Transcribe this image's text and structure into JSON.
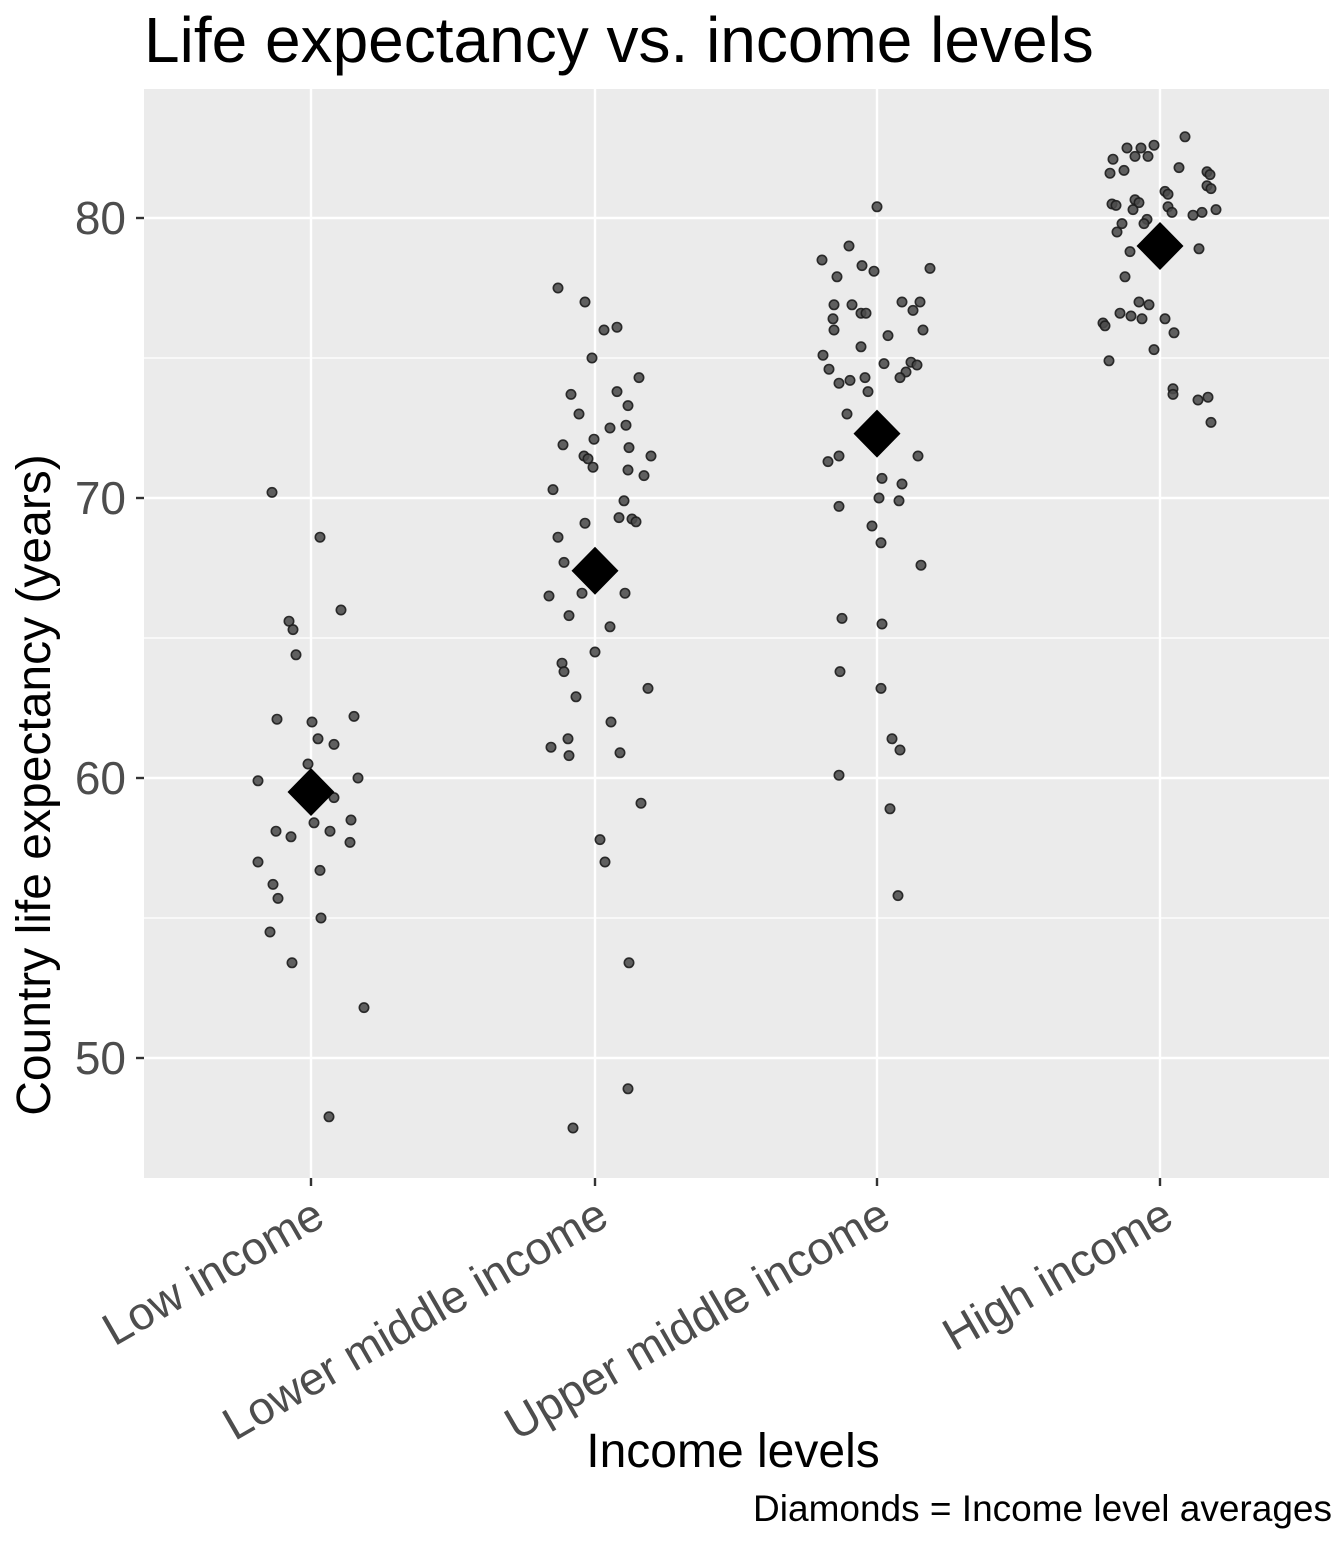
{
  "title": "Life expectancy vs. income levels",
  "caption": "Diamonds = Income level averages",
  "chart_data": {
    "type": "scatter",
    "subtype": "jittered-strip-plot-with-group-means",
    "title": "Life expectancy vs. income levels",
    "xlabel": "Income levels",
    "ylabel": "Country life expectancy (years)",
    "caption": "Diamonds = Income level averages",
    "legend_position": "none",
    "grid": true,
    "y_major_ticks": [
      80,
      70,
      60,
      50
    ],
    "y_minor_gridlines": [
      75,
      65,
      55
    ],
    "ylim": [
      45.7,
      84.6
    ],
    "categories": [
      "Low income",
      "Lower middle income",
      "Upper middle income",
      "High income"
    ],
    "means": [
      59.5,
      67.4,
      72.3,
      79.0
    ],
    "point_format": [
      "life_expectancy_years",
      "x_jitter_px"
    ],
    "colors": {
      "panel_background": "#EBEBEB",
      "gridline": "#FFFFFF",
      "point_fill": "#4b4b4b",
      "point_stroke": "#1c1c1c",
      "diamond": "#000000",
      "tick_label": "#4d4d4d",
      "axis_tick": "#333333"
    },
    "series": [
      {
        "name": "Low income",
        "mean": 59.5,
        "points": [
          [
            70.2,
            -39
          ],
          [
            68.6,
            9
          ],
          [
            66.0,
            30
          ],
          [
            65.6,
            -22
          ],
          [
            65.3,
            -18
          ],
          [
            64.4,
            -15
          ],
          [
            62.2,
            43
          ],
          [
            62.1,
            -34
          ],
          [
            62.0,
            1
          ],
          [
            61.4,
            7
          ],
          [
            61.2,
            23
          ],
          [
            60.5,
            -3
          ],
          [
            60.0,
            47
          ],
          [
            59.9,
            -53
          ],
          [
            59.3,
            23
          ],
          [
            58.5,
            40
          ],
          [
            58.4,
            3
          ],
          [
            58.1,
            -35
          ],
          [
            58.1,
            19
          ],
          [
            57.9,
            -20
          ],
          [
            57.7,
            39
          ],
          [
            57.0,
            -53
          ],
          [
            56.7,
            9
          ],
          [
            56.2,
            -38
          ],
          [
            55.7,
            -33
          ],
          [
            55.0,
            10
          ],
          [
            54.5,
            -41
          ],
          [
            53.4,
            -19
          ],
          [
            51.8,
            53
          ],
          [
            47.9,
            18
          ]
        ]
      },
      {
        "name": "Lower middle income",
        "mean": 67.4,
        "points": [
          [
            77.5,
            -37
          ],
          [
            77.0,
            -10
          ],
          [
            76.1,
            22
          ],
          [
            76.0,
            9
          ],
          [
            75.0,
            -3
          ],
          [
            74.3,
            44
          ],
          [
            73.8,
            22
          ],
          [
            73.7,
            -24
          ],
          [
            73.3,
            33
          ],
          [
            73.0,
            -16
          ],
          [
            72.6,
            31
          ],
          [
            72.5,
            15
          ],
          [
            72.1,
            -1
          ],
          [
            71.9,
            -32
          ],
          [
            71.8,
            34
          ],
          [
            71.5,
            -11
          ],
          [
            71.4,
            -7
          ],
          [
            71.5,
            56
          ],
          [
            71.1,
            -2
          ],
          [
            71.0,
            33
          ],
          [
            70.8,
            49
          ],
          [
            70.3,
            -42
          ],
          [
            69.9,
            29
          ],
          [
            69.3,
            24
          ],
          [
            69.25,
            37
          ],
          [
            69.15,
            41
          ],
          [
            69.1,
            -10
          ],
          [
            68.6,
            -37
          ],
          [
            67.7,
            -31
          ],
          [
            66.6,
            -13
          ],
          [
            66.6,
            30
          ],
          [
            66.5,
            -46
          ],
          [
            65.8,
            -26
          ],
          [
            65.4,
            15
          ],
          [
            64.5,
            0
          ],
          [
            64.1,
            -33
          ],
          [
            63.8,
            -31
          ],
          [
            63.2,
            53
          ],
          [
            62.9,
            -19
          ],
          [
            62.0,
            16
          ],
          [
            61.4,
            -27
          ],
          [
            61.1,
            -44
          ],
          [
            60.9,
            25
          ],
          [
            60.8,
            -26
          ],
          [
            59.1,
            46
          ],
          [
            57.8,
            5
          ],
          [
            57.0,
            10
          ],
          [
            53.4,
            34
          ],
          [
            48.9,
            33
          ],
          [
            47.5,
            -22
          ]
        ]
      },
      {
        "name": "Upper middle income",
        "mean": 72.3,
        "points": [
          [
            80.4,
            0
          ],
          [
            79.0,
            -28
          ],
          [
            78.5,
            -55
          ],
          [
            78.3,
            -15
          ],
          [
            78.2,
            53
          ],
          [
            78.1,
            -3
          ],
          [
            77.9,
            -40
          ],
          [
            77.0,
            25
          ],
          [
            77.0,
            43
          ],
          [
            76.9,
            -43
          ],
          [
            76.9,
            -25
          ],
          [
            76.7,
            36
          ],
          [
            76.6,
            -16
          ],
          [
            76.6,
            -11
          ],
          [
            76.4,
            -44
          ],
          [
            76.0,
            -43
          ],
          [
            76.0,
            46
          ],
          [
            75.8,
            11
          ],
          [
            75.4,
            -16
          ],
          [
            75.1,
            -54
          ],
          [
            74.85,
            34
          ],
          [
            74.8,
            7
          ],
          [
            74.75,
            40
          ],
          [
            74.6,
            -48
          ],
          [
            74.5,
            29
          ],
          [
            74.3,
            23
          ],
          [
            74.3,
            -12
          ],
          [
            74.2,
            -27
          ],
          [
            74.1,
            -38
          ],
          [
            73.8,
            -9
          ],
          [
            73.0,
            -30
          ],
          [
            71.5,
            -38
          ],
          [
            71.5,
            41
          ],
          [
            71.3,
            -49
          ],
          [
            70.7,
            5
          ],
          [
            70.5,
            25
          ],
          [
            70.0,
            2
          ],
          [
            69.9,
            22
          ],
          [
            69.7,
            -38
          ],
          [
            69.0,
            -5
          ],
          [
            68.4,
            4
          ],
          [
            67.6,
            44
          ],
          [
            65.7,
            -35
          ],
          [
            65.5,
            5
          ],
          [
            63.8,
            -37
          ],
          [
            63.2,
            4
          ],
          [
            61.4,
            15
          ],
          [
            61.0,
            23
          ],
          [
            60.1,
            -38
          ],
          [
            58.9,
            13
          ],
          [
            55.8,
            21
          ]
        ]
      },
      {
        "name": "High income",
        "mean": 79.0,
        "points": [
          [
            82.9,
            25
          ],
          [
            82.6,
            -6
          ],
          [
            82.5,
            -33
          ],
          [
            82.5,
            -19
          ],
          [
            82.2,
            -25
          ],
          [
            82.2,
            -12
          ],
          [
            82.1,
            -47
          ],
          [
            81.8,
            19
          ],
          [
            81.7,
            -36
          ],
          [
            81.6,
            -50
          ],
          [
            81.65,
            47
          ],
          [
            81.55,
            50
          ],
          [
            81.15,
            47
          ],
          [
            81.05,
            51
          ],
          [
            80.95,
            5
          ],
          [
            80.85,
            8
          ],
          [
            80.65,
            -25
          ],
          [
            80.55,
            -21
          ],
          [
            80.5,
            -48
          ],
          [
            80.45,
            -44
          ],
          [
            80.4,
            8
          ],
          [
            80.3,
            -27
          ],
          [
            80.3,
            56
          ],
          [
            80.2,
            12
          ],
          [
            80.2,
            42
          ],
          [
            80.1,
            33
          ],
          [
            79.95,
            -13
          ],
          [
            79.8,
            -38
          ],
          [
            79.8,
            -16
          ],
          [
            79.5,
            -43
          ],
          [
            78.9,
            39
          ],
          [
            78.8,
            -30
          ],
          [
            77.9,
            -35
          ],
          [
            77.0,
            -21
          ],
          [
            76.9,
            -11
          ],
          [
            76.6,
            -40
          ],
          [
            76.5,
            -29
          ],
          [
            76.4,
            -18
          ],
          [
            76.4,
            5
          ],
          [
            76.25,
            -57
          ],
          [
            76.15,
            -55
          ],
          [
            75.9,
            14
          ],
          [
            75.3,
            -6
          ],
          [
            74.9,
            -51
          ],
          [
            73.9,
            13
          ],
          [
            73.7,
            13
          ],
          [
            73.6,
            48
          ],
          [
            73.5,
            38
          ],
          [
            72.7,
            51
          ]
        ]
      }
    ]
  }
}
